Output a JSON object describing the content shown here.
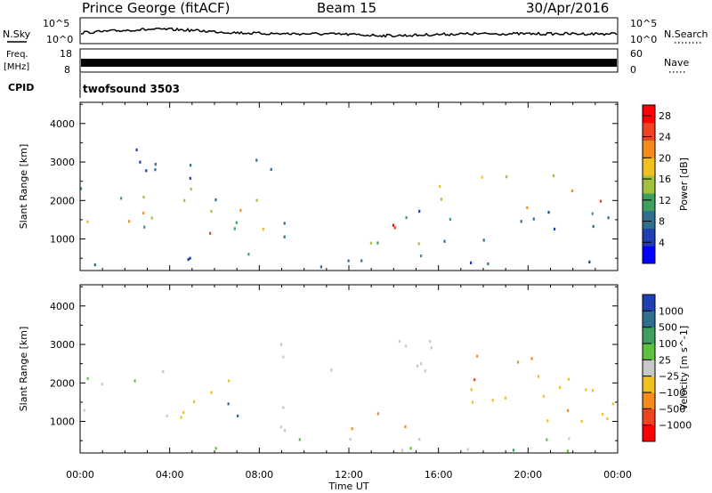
{
  "header": {
    "title": "Prince George (fitACF)",
    "beam": "Beam 15",
    "date": "30/Apr/2016"
  },
  "top_panels": {
    "nsky_label": "N.Sky",
    "nsky_hi": "10^5",
    "nsky_lo": "10^0",
    "nsearch_label": "N.Search",
    "nsearch_hi": "10^5",
    "nsearch_lo": "10^0",
    "freq_label_1": "Freq.",
    "freq_label_2": "[MHz]",
    "freq_hi": "18",
    "freq_lo": "8",
    "nave_label": "Nave",
    "nave_hi": "60",
    "nave_lo": "0",
    "cpid_label": "CPID",
    "cpid_value": "twofsound 3503"
  },
  "colors": {
    "power_scale": [
      "#0000ff",
      "#1f3fb3",
      "#2e6f8f",
      "#3f9f5f",
      "#a0c040",
      "#f0c020",
      "#f58a1e",
      "#ee4422",
      "#ff0000"
    ],
    "velocity_scale": [
      "#1f3fb3",
      "#2e6f8f",
      "#3f9f5f",
      "#60c040",
      "#c8c8c8",
      "#c8c8c8",
      "#f0c020",
      "#f58a1e",
      "#ee4422",
      "#ff0000"
    ]
  },
  "chart_data": [
    {
      "type": "heatmap",
      "name": "power",
      "ylabel": "Slant Range [km]",
      "xlabel": "Time UT",
      "x_ticks": [
        "00:00",
        "04:00",
        "08:00",
        "12:00",
        "16:00",
        "20:00",
        "00:00"
      ],
      "xlim_hours": [
        0,
        24
      ],
      "y_ticks": [
        1000,
        2000,
        3000,
        4000
      ],
      "ylim": [
        180,
        4550
      ],
      "colorbar_label": "Power [dB]",
      "colorbar_ticks": [
        4,
        8,
        12,
        16,
        20,
        24,
        28
      ],
      "colorbar_range": [
        0,
        30
      ],
      "regions": [
        {
          "t": [
            0,
            8.5
          ],
          "r": [
            1100,
            2400
          ],
          "level": 12
        },
        {
          "t": [
            0,
            5
          ],
          "r": [
            1300,
            1800
          ],
          "level": 18
        },
        {
          "t": [
            5,
            6.5
          ],
          "r": [
            800,
            1600
          ],
          "level": 28
        },
        {
          "t": [
            6.5,
            8.3
          ],
          "r": [
            1200,
            2000
          ],
          "level": 20
        },
        {
          "t": [
            0.5,
            9
          ],
          "r": [
            2400,
            3400
          ],
          "level": 6
        },
        {
          "t": [
            8.5,
            16
          ],
          "r": [
            800,
            1400
          ],
          "level": 12
        },
        {
          "t": [
            11.2,
            14.3
          ],
          "r": [
            900,
            1400
          ],
          "level": 28
        },
        {
          "t": [
            16,
            24
          ],
          "r": [
            1800,
            2700
          ],
          "level": 20
        },
        {
          "t": [
            14,
            24
          ],
          "r": [
            700,
            1800
          ],
          "level": 8
        },
        {
          "t": [
            0,
            24
          ],
          "r": [
            200,
            600
          ],
          "level": 6
        }
      ]
    },
    {
      "type": "heatmap",
      "name": "velocity",
      "ylabel": "Slant Range [km]",
      "xlabel": "Time UT",
      "x_ticks": [
        "00:00",
        "04:00",
        "08:00",
        "12:00",
        "16:00",
        "20:00",
        "00:00"
      ],
      "xlim_hours": [
        0,
        24
      ],
      "y_ticks": [
        1000,
        2000,
        3000,
        4000
      ],
      "ylim": [
        180,
        4550
      ],
      "colorbar_label": "Velocity [m s^-1]",
      "colorbar_ticks": [
        "1000",
        "500",
        "100",
        "25",
        "−25",
        "−100",
        "−500",
        "−1000"
      ],
      "regions": [
        {
          "t": [
            0,
            4
          ],
          "r": [
            1100,
            2400
          ],
          "level": 0
        },
        {
          "t": [
            4,
            8.3
          ],
          "r": [
            1000,
            2100
          ],
          "level": -150
        },
        {
          "t": [
            6,
            8.5
          ],
          "r": [
            800,
            1600
          ],
          "level": 400
        },
        {
          "t": [
            8.5,
            12
          ],
          "r": [
            700,
            1400
          ],
          "level": 0
        },
        {
          "t": [
            11,
            14.5
          ],
          "r": [
            800,
            1500
          ],
          "level": -300
        },
        {
          "t": [
            15.5,
            20.5
          ],
          "r": [
            2000,
            2800
          ],
          "level": -700
        },
        {
          "t": [
            14,
            24
          ],
          "r": [
            1200,
            1900
          ],
          "level": -200
        },
        {
          "t": [
            20,
            24
          ],
          "r": [
            600,
            2300
          ],
          "level": -300
        },
        {
          "t": [
            8,
            16
          ],
          "r": [
            2300,
            3400
          ],
          "level": 0
        },
        {
          "t": [
            0,
            24
          ],
          "r": [
            200,
            600
          ],
          "level": 30
        }
      ]
    }
  ]
}
